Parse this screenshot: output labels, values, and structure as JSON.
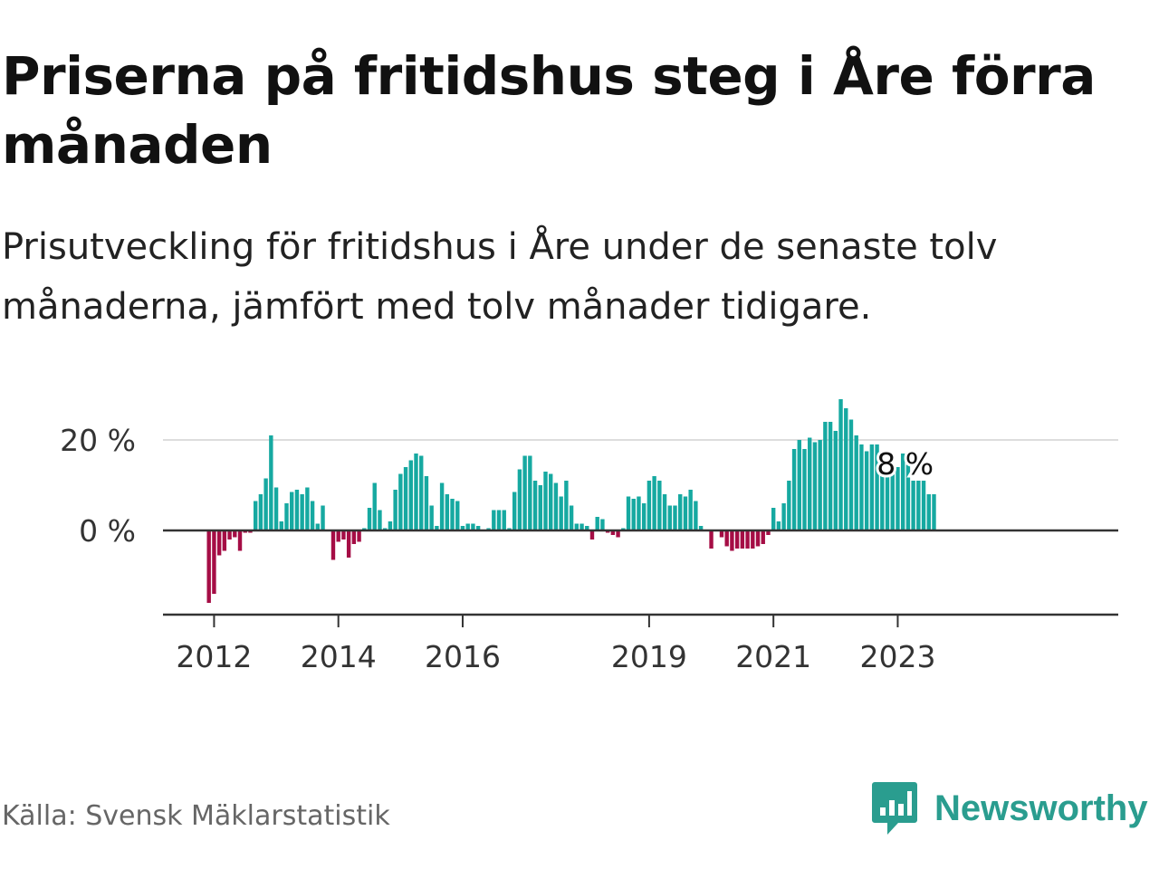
{
  "title": "Priserna på fritidshus steg i Åre förra månaden",
  "subtitle": "Prisutveckling för fritidshus i Åre under de senaste tolv månaderna, jämfört med tolv månader tidigare.",
  "source": "Källa: Svensk Mäklarstatistik",
  "brand": {
    "name": "Newsworthy",
    "icon": "newsworthy-logo-icon"
  },
  "colors": {
    "positive": "#16a9a1",
    "negative": "#a50d45",
    "axis": "#333333",
    "grid": "#dddddd",
    "brand": "#2a9d8f"
  },
  "chart_data": {
    "type": "bar",
    "x_ticks": [
      "2012",
      "2014",
      "2016",
      "2019",
      "2021",
      "2023"
    ],
    "y_ticks": [
      "20 %",
      "0 %"
    ],
    "ylim": [
      -18,
      30
    ],
    "grid": true,
    "last_value_label": "8 %",
    "x_start": "2011-12",
    "values": [
      -16,
      -14,
      -5.5,
      -4.5,
      -2,
      -1.5,
      -4.5,
      -0.5,
      -0.5,
      6.5,
      8,
      11.5,
      21,
      9.5,
      2,
      6,
      8.5,
      9,
      8,
      9.5,
      6.5,
      1.5,
      5.5,
      0,
      -6.5,
      -2.5,
      -2,
      -6,
      -3,
      -2.5,
      0.5,
      5,
      10.5,
      4.5,
      0.5,
      2,
      9,
      12.5,
      14,
      15.5,
      17,
      16.5,
      12,
      5.5,
      1,
      10.5,
      8,
      7,
      6.5,
      1,
      1.5,
      1.5,
      1,
      0,
      0.5,
      4.5,
      4.5,
      4.5,
      0.5,
      8.5,
      13.5,
      16.5,
      16.5,
      11,
      10,
      13,
      12.5,
      10.5,
      7.5,
      11,
      5.5,
      1.5,
      1.5,
      1,
      -2,
      3,
      2.5,
      -0.5,
      -1,
      -1.5,
      0.5,
      7.5,
      7,
      7.5,
      6,
      11,
      12,
      11,
      8,
      5.5,
      5.5,
      8,
      7.5,
      9,
      6.5,
      1,
      0,
      -4,
      0,
      -1.5,
      -3.5,
      -4.5,
      -4,
      -4,
      -4,
      -4,
      -3.5,
      -3,
      -1,
      5,
      2,
      6,
      11,
      18,
      20,
      18,
      20.5,
      19.5,
      20,
      24,
      24,
      22,
      29,
      27,
      24.5,
      21,
      19,
      17.5,
      19,
      19,
      16.5,
      13,
      12.5,
      14,
      17,
      14.5,
      11,
      11,
      11,
      8,
      8
    ]
  }
}
